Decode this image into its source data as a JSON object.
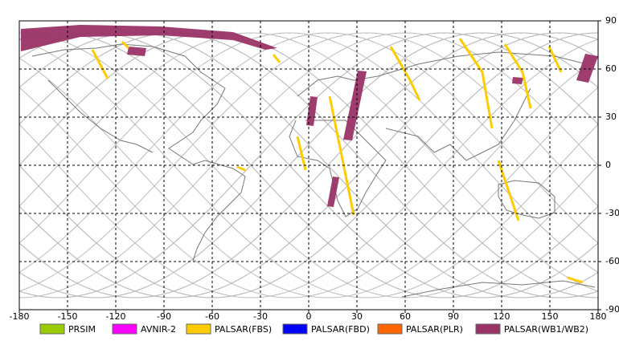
{
  "chart_data": {
    "type": "map",
    "xlim": [
      -180,
      180
    ],
    "ylim": [
      -90,
      90
    ],
    "xticks": [
      -180,
      -150,
      -120,
      -90,
      -60,
      -30,
      0,
      30,
      60,
      90,
      120,
      150,
      180
    ],
    "yticks": [
      -90,
      -60,
      -30,
      0,
      30,
      60,
      90
    ],
    "grid": true,
    "legend": [
      {
        "name": "PRSIM",
        "color": "#99cc00"
      },
      {
        "name": "AVNIR-2",
        "color": "#ff00ff"
      },
      {
        "name": "PALSAR(FBS)",
        "color": "#ffcc00"
      },
      {
        "name": "PALSAR(FBD)",
        "color": "#0000ff"
      },
      {
        "name": "PALSAR(PLR)",
        "color": "#ff6600"
      },
      {
        "name": "PALSAR(WB1/WB2)",
        "color": "#993366"
      }
    ]
  }
}
